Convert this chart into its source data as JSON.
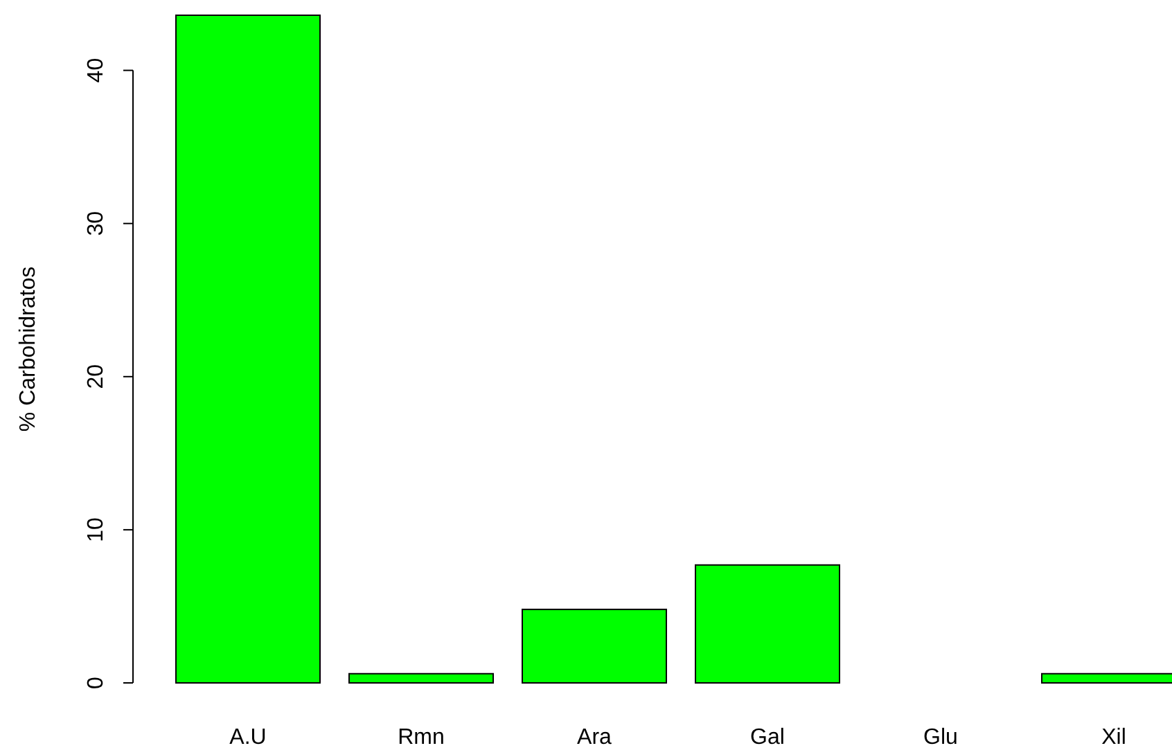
{
  "chart_data": {
    "type": "bar",
    "ylabel": "% Carbohidratos",
    "categories": [
      "A.U",
      "Rmn",
      "Ara",
      "Gal",
      "Glu",
      "Xil"
    ],
    "values": [
      43.6,
      0.6,
      4.8,
      7.7,
      0,
      0.6
    ],
    "color": "#00ff00",
    "ylim": [
      0,
      43.6
    ],
    "yticks": [
      0,
      10,
      20,
      30,
      40
    ],
    "grid": false
  }
}
